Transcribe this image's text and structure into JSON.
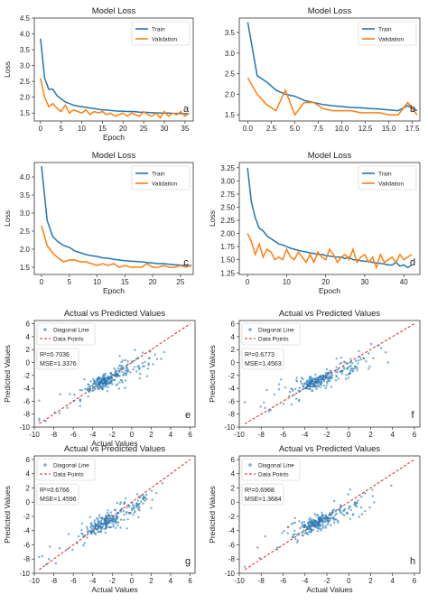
{
  "colors": {
    "train": "#1f77b4",
    "validation": "#ff7f0e",
    "points": "#1f77b4",
    "diagonal": "#d62728"
  },
  "chart_data": [
    {
      "id": "a",
      "type": "line",
      "title": "Model Loss",
      "xlabel": "Epoch",
      "ylabel": "Loss",
      "xlim": [
        -1.5,
        37
      ],
      "ylim": [
        1.25,
        4.5
      ],
      "xticks": [
        0,
        5,
        10,
        15,
        20,
        25,
        30,
        35
      ],
      "yticks": [
        1.5,
        2.0,
        2.5,
        3.0,
        3.5,
        4.0,
        4.5
      ],
      "legend": [
        "Train",
        "Validation"
      ],
      "legend_position": "upper right",
      "panel_label": "a",
      "series": [
        {
          "name": "Train",
          "x": [
            0,
            1,
            2,
            3,
            4,
            5,
            6,
            7,
            8,
            9,
            10,
            11,
            12,
            13,
            14,
            15,
            16,
            17,
            18,
            19,
            20,
            21,
            22,
            23,
            24,
            25,
            26,
            27,
            28,
            29,
            30,
            31,
            32,
            33,
            34,
            35,
            36
          ],
          "values": [
            3.85,
            2.6,
            2.25,
            2.25,
            2.05,
            1.95,
            1.85,
            1.8,
            1.75,
            1.72,
            1.7,
            1.68,
            1.66,
            1.64,
            1.62,
            1.6,
            1.6,
            1.58,
            1.57,
            1.56,
            1.56,
            1.55,
            1.55,
            1.54,
            1.53,
            1.52,
            1.52,
            1.51,
            1.51,
            1.5,
            1.5,
            1.5,
            1.49,
            1.49,
            1.48,
            1.48,
            1.48
          ]
        },
        {
          "name": "Validation",
          "x": [
            0,
            1,
            2,
            3,
            4,
            5,
            6,
            7,
            8,
            9,
            10,
            11,
            12,
            13,
            14,
            15,
            16,
            17,
            18,
            19,
            20,
            21,
            22,
            23,
            24,
            25,
            26,
            27,
            28,
            29,
            30,
            31,
            32,
            33,
            34,
            35,
            36
          ],
          "values": [
            2.6,
            2.0,
            1.7,
            1.8,
            1.65,
            1.55,
            1.75,
            1.5,
            1.6,
            1.55,
            1.5,
            1.6,
            1.45,
            1.55,
            1.5,
            1.55,
            1.45,
            1.5,
            1.4,
            1.45,
            1.5,
            1.4,
            1.5,
            1.45,
            1.4,
            1.55,
            1.45,
            1.4,
            1.5,
            1.35,
            1.55,
            1.4,
            1.5,
            1.45,
            1.55,
            1.4,
            1.5
          ]
        }
      ]
    },
    {
      "id": "b",
      "type": "line",
      "title": "Model Loss",
      "xlabel": "",
      "ylabel": "",
      "xlim": [
        -0.9,
        18.3
      ],
      "ylim": [
        1.35,
        3.85
      ],
      "xticks": [
        0.0,
        2.5,
        5.0,
        7.5,
        10.0,
        12.5,
        15.0,
        17.5
      ],
      "yticks": [
        1.5,
        2.0,
        2.5,
        3.0,
        3.5
      ],
      "legend": [
        "Train",
        "Validation"
      ],
      "legend_position": "upper right",
      "panel_label": "b",
      "series": [
        {
          "name": "Train",
          "x": [
            0,
            1,
            2,
            3,
            4,
            5,
            6,
            7,
            8,
            9,
            10,
            11,
            12,
            13,
            14,
            15,
            16,
            17,
            18
          ],
          "values": [
            3.75,
            2.45,
            2.3,
            2.1,
            2.0,
            1.95,
            1.85,
            1.8,
            1.75,
            1.72,
            1.7,
            1.68,
            1.67,
            1.65,
            1.64,
            1.62,
            1.6,
            1.72,
            1.6
          ]
        },
        {
          "name": "Validation",
          "x": [
            0,
            1,
            2,
            3,
            4,
            5,
            6,
            7,
            8,
            9,
            10,
            11,
            12,
            13,
            14,
            15,
            16,
            17,
            18
          ],
          "values": [
            2.4,
            2.0,
            1.75,
            1.6,
            2.1,
            1.5,
            1.8,
            1.8,
            1.65,
            1.6,
            1.6,
            1.6,
            1.55,
            1.55,
            1.55,
            1.5,
            1.5,
            1.8,
            1.5
          ]
        }
      ]
    },
    {
      "id": "c",
      "type": "line",
      "title": "Model Loss",
      "xlabel": "Epoch",
      "ylabel": "Loss",
      "xlim": [
        -1.3,
        27.3
      ],
      "ylim": [
        1.3,
        4.4
      ],
      "xticks": [
        0,
        5,
        10,
        15,
        20,
        25
      ],
      "yticks": [
        1.5,
        2.0,
        2.5,
        3.0,
        3.5,
        4.0
      ],
      "legend": [
        "Train",
        "Validation"
      ],
      "legend_position": "upper right",
      "panel_label": "c",
      "series": [
        {
          "name": "Train",
          "x": [
            0,
            1,
            2,
            3,
            4,
            5,
            6,
            7,
            8,
            9,
            10,
            11,
            12,
            13,
            14,
            15,
            16,
            17,
            18,
            19,
            20,
            21,
            22,
            23,
            24,
            25,
            26,
            27
          ],
          "values": [
            4.3,
            2.8,
            2.35,
            2.2,
            2.1,
            2.05,
            1.95,
            1.9,
            1.85,
            1.82,
            1.8,
            1.76,
            1.75,
            1.72,
            1.7,
            1.68,
            1.67,
            1.66,
            1.65,
            1.63,
            1.62,
            1.6,
            1.6,
            1.58,
            1.57,
            1.56,
            1.55,
            1.55
          ]
        },
        {
          "name": "Validation",
          "x": [
            0,
            1,
            2,
            3,
            4,
            5,
            6,
            7,
            8,
            9,
            10,
            11,
            12,
            13,
            14,
            15,
            16,
            17,
            18,
            19,
            20,
            21,
            22,
            23,
            24,
            25,
            26,
            27
          ],
          "values": [
            2.65,
            2.1,
            1.9,
            1.75,
            1.65,
            1.7,
            1.7,
            1.65,
            1.65,
            1.6,
            1.55,
            1.6,
            1.55,
            1.6,
            1.5,
            1.55,
            1.5,
            1.5,
            1.5,
            1.6,
            1.5,
            1.5,
            1.55,
            1.5,
            1.5,
            1.55,
            1.5,
            1.55
          ]
        }
      ]
    },
    {
      "id": "d",
      "type": "line",
      "title": "Model Loss",
      "xlabel": "Epoch",
      "ylabel": "Loss",
      "xlim": [
        -2.1,
        44.1
      ],
      "ylim": [
        1.22,
        3.35
      ],
      "xticks": [
        0,
        10,
        20,
        30,
        40
      ],
      "yticks": [
        1.25,
        1.5,
        1.75,
        2.0,
        2.25,
        2.5,
        2.75,
        3.0,
        3.25
      ],
      "legend": [
        "Train",
        "Validation"
      ],
      "legend_position": "upper right",
      "panel_label": "d",
      "series": [
        {
          "name": "Train",
          "x": [
            0,
            1,
            2,
            3,
            4,
            5,
            6,
            7,
            8,
            9,
            10,
            11,
            12,
            13,
            14,
            15,
            16,
            17,
            18,
            19,
            20,
            21,
            22,
            23,
            24,
            25,
            26,
            27,
            28,
            29,
            30,
            31,
            32,
            33,
            34,
            35,
            36,
            37,
            38,
            39,
            40,
            41,
            42
          ],
          "values": [
            3.25,
            2.6,
            2.3,
            2.1,
            2.05,
            1.95,
            1.9,
            1.85,
            1.8,
            1.78,
            1.75,
            1.72,
            1.7,
            1.68,
            1.66,
            1.65,
            1.63,
            1.62,
            1.6,
            1.6,
            1.58,
            1.57,
            1.56,
            1.55,
            1.55,
            1.52,
            1.55,
            1.5,
            1.5,
            1.48,
            1.47,
            1.47,
            1.45,
            1.44,
            1.43,
            1.42,
            1.4,
            1.4,
            1.45,
            1.38,
            1.4,
            1.35,
            1.4
          ]
        },
        {
          "name": "Validation",
          "x": [
            0,
            1,
            2,
            3,
            4,
            5,
            6,
            7,
            8,
            9,
            10,
            11,
            12,
            13,
            14,
            15,
            16,
            17,
            18,
            19,
            20,
            21,
            22,
            23,
            24,
            25,
            26,
            27,
            28,
            29,
            30,
            31,
            32,
            33,
            34,
            35,
            36,
            37,
            38,
            39,
            40,
            41,
            42
          ],
          "values": [
            2.0,
            1.85,
            1.6,
            1.8,
            1.55,
            1.7,
            1.65,
            1.5,
            1.55,
            1.5,
            1.7,
            1.55,
            1.5,
            1.65,
            1.55,
            1.45,
            1.6,
            1.45,
            1.65,
            1.55,
            1.5,
            1.7,
            1.6,
            1.45,
            1.55,
            1.6,
            1.5,
            1.7,
            1.45,
            1.55,
            1.6,
            1.45,
            1.55,
            1.35,
            1.6,
            1.45,
            1.5,
            1.55,
            1.45,
            1.6,
            1.5,
            1.55,
            1.6
          ]
        }
      ]
    },
    {
      "id": "e",
      "type": "scatter",
      "title": "Actual vs Predicted Values",
      "xlabel": "Actual Values",
      "ylabel": "Predicted Values",
      "xlim": [
        -10,
        6.5
      ],
      "ylim": [
        -10,
        6.5
      ],
      "xticks": [
        -10,
        -8,
        -6,
        -4,
        -2,
        0,
        2,
        4,
        6
      ],
      "yticks": [
        -10,
        -8,
        -6,
        -4,
        -2,
        0,
        2,
        4,
        6
      ],
      "legend": [
        "Diagonal Line",
        "Data Points"
      ],
      "legend_position": "upper left",
      "annotation": [
        "R²=0.7036",
        "MSE=1.3376"
      ],
      "panel_label": "e",
      "diagonal": [
        -9.5,
        6.0
      ],
      "seed": 11,
      "n_points": 260
    },
    {
      "id": "f",
      "type": "scatter",
      "title": "Actual vs Predicted Values",
      "xlabel": "",
      "ylabel": "Predicted Values",
      "xlim": [
        -10,
        6.5
      ],
      "ylim": [
        -10,
        6.5
      ],
      "xticks": [
        -10,
        -8,
        -6,
        -4,
        -2,
        0,
        2,
        4,
        6
      ],
      "yticks": [
        -10,
        -8,
        -6,
        -4,
        -2,
        0,
        2,
        4,
        6
      ],
      "legend": [
        "Diagonal Line",
        "Data Points"
      ],
      "legend_position": "upper left",
      "annotation": [
        "R²=0.6773",
        "MSE=1.4563"
      ],
      "panel_label": "f",
      "diagonal": [
        -9.5,
        6.0
      ],
      "seed": 23,
      "n_points": 260
    },
    {
      "id": "g",
      "type": "scatter",
      "title": "Actual vs Predicted Values",
      "xlabel": "Actual Values",
      "ylabel": "Predicted Values",
      "xlim": [
        -10,
        6.5
      ],
      "ylim": [
        -10,
        6.5
      ],
      "xticks": [
        -10,
        -8,
        -6,
        -4,
        -2,
        0,
        2,
        4,
        6
      ],
      "yticks": [
        -10,
        -8,
        -6,
        -4,
        -2,
        0,
        2,
        4,
        6
      ],
      "legend": [
        "Diagonal Line",
        "Data Points"
      ],
      "legend_position": "upper left",
      "annotation": [
        "R²=0.6766",
        "MSE=1.4596"
      ],
      "panel_label": "g",
      "diagonal": [
        -9.5,
        6.0
      ],
      "seed": 37,
      "n_points": 260
    },
    {
      "id": "h",
      "type": "scatter",
      "title": "Actual vs Predicted Values",
      "xlabel": "Actual Values",
      "ylabel": "Predicted Values",
      "xlim": [
        -10,
        6.5
      ],
      "ylim": [
        -10,
        6.5
      ],
      "xticks": [
        -10,
        -8,
        -6,
        -4,
        -2,
        0,
        2,
        4,
        6
      ],
      "yticks": [
        -10,
        -8,
        -6,
        -4,
        -2,
        0,
        2,
        4,
        6
      ],
      "legend": [
        "Diagonal Line",
        "Data Points"
      ],
      "legend_position": "upper left",
      "annotation": [
        "R²=0.6968",
        "MSE=1.3684"
      ],
      "panel_label": "h",
      "diagonal": [
        -9.5,
        6.0
      ],
      "seed": 53,
      "n_points": 260
    }
  ]
}
